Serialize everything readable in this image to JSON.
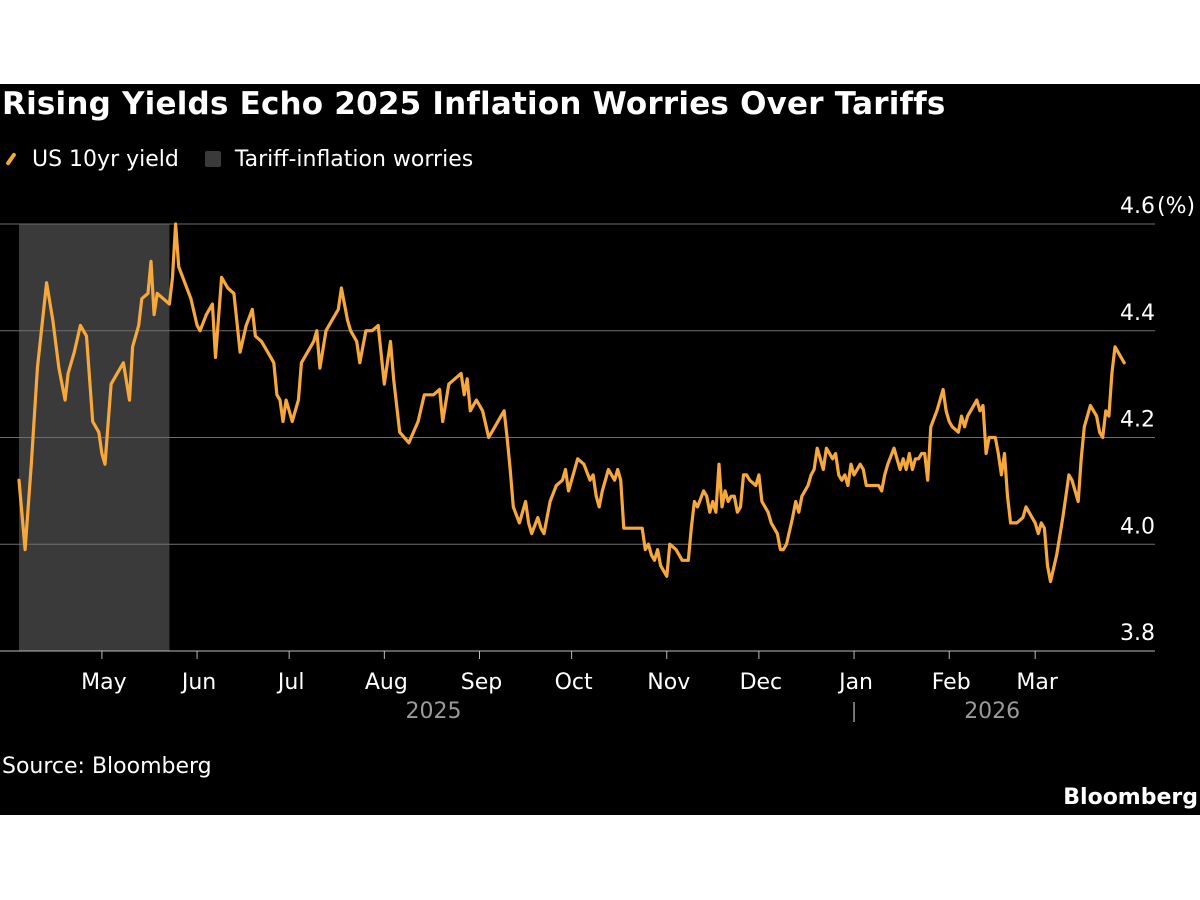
{
  "chart_data": {
    "type": "line",
    "title": "Rising Yields Echo 2025 Inflation Worries Over Tariffs",
    "source": "Source: Bloomberg",
    "brand": "Bloomberg",
    "legend": [
      {
        "label": "US 10yr yield",
        "kind": "line",
        "color": "#f7a83a"
      },
      {
        "label": "Tariff-inflation worries",
        "kind": "box",
        "color": "#3a3a3a"
      }
    ],
    "y_unit_label": "(%)",
    "ylim": [
      3.8,
      4.6
    ],
    "y_ticks": [
      3.8,
      4.0,
      4.2,
      4.4,
      4.6
    ],
    "y_tick_labels": [
      "3.8",
      "4.0",
      "4.2",
      "4.4",
      "4.6"
    ],
    "x_axis": {
      "start_day": 0,
      "end_day": 383,
      "day_zero": "2025-04-01",
      "month_ticks": [
        {
          "label": "May",
          "day": 30
        },
        {
          "label": "Jun",
          "day": 61
        },
        {
          "label": "Jul",
          "day": 91
        },
        {
          "label": "Aug",
          "day": 122
        },
        {
          "label": "Sep",
          "day": 153
        },
        {
          "label": "Oct",
          "day": 183
        },
        {
          "label": "Nov",
          "day": 214
        },
        {
          "label": "Dec",
          "day": 244
        },
        {
          "label": "Jan",
          "day": 275
        },
        {
          "label": "Feb",
          "day": 306
        },
        {
          "label": "Mar",
          "day": 334
        }
      ],
      "year_labels": [
        {
          "label": "2025",
          "day": 138
        },
        {
          "label": "2026",
          "day": 320
        }
      ],
      "year_divider_day": 275
    },
    "shaded_regions": [
      {
        "label": "Tariff-inflation worries",
        "start_day": 3,
        "end_day": 52
      }
    ],
    "series": [
      {
        "name": "US 10yr yield",
        "color": "#f7a83a",
        "points": [
          [
            3,
            4.12
          ],
          [
            5,
            3.99
          ],
          [
            7,
            4.15
          ],
          [
            9,
            4.33
          ],
          [
            12,
            4.49
          ],
          [
            14,
            4.42
          ],
          [
            16,
            4.33
          ],
          [
            18,
            4.27
          ],
          [
            19,
            4.32
          ],
          [
            21,
            4.36
          ],
          [
            23,
            4.41
          ],
          [
            25,
            4.39
          ],
          [
            27,
            4.23
          ],
          [
            29,
            4.21
          ],
          [
            30,
            4.17
          ],
          [
            31,
            4.15
          ],
          [
            33,
            4.3
          ],
          [
            35,
            4.32
          ],
          [
            37,
            4.34
          ],
          [
            39,
            4.27
          ],
          [
            40,
            4.37
          ],
          [
            42,
            4.41
          ],
          [
            43,
            4.46
          ],
          [
            45,
            4.47
          ],
          [
            46,
            4.53
          ],
          [
            47,
            4.43
          ],
          [
            48,
            4.47
          ],
          [
            50,
            4.46
          ],
          [
            52,
            4.45
          ],
          [
            53,
            4.5
          ],
          [
            54,
            4.6
          ],
          [
            55,
            4.52
          ],
          [
            57,
            4.49
          ],
          [
            59,
            4.46
          ],
          [
            61,
            4.41
          ],
          [
            62,
            4.4
          ],
          [
            64,
            4.43
          ],
          [
            66,
            4.45
          ],
          [
            67,
            4.35
          ],
          [
            69,
            4.5
          ],
          [
            71,
            4.48
          ],
          [
            73,
            4.47
          ],
          [
            75,
            4.36
          ],
          [
            77,
            4.41
          ],
          [
            79,
            4.44
          ],
          [
            80,
            4.39
          ],
          [
            82,
            4.38
          ],
          [
            84,
            4.36
          ],
          [
            86,
            4.34
          ],
          [
            87,
            4.28
          ],
          [
            88,
            4.27
          ],
          [
            89,
            4.23
          ],
          [
            90,
            4.27
          ],
          [
            91,
            4.25
          ],
          [
            92,
            4.23
          ],
          [
            94,
            4.27
          ],
          [
            95,
            4.34
          ],
          [
            97,
            4.36
          ],
          [
            99,
            4.38
          ],
          [
            100,
            4.4
          ],
          [
            101,
            4.33
          ],
          [
            103,
            4.4
          ],
          [
            105,
            4.42
          ],
          [
            107,
            4.44
          ],
          [
            108,
            4.48
          ],
          [
            110,
            4.42
          ],
          [
            111,
            4.4
          ],
          [
            113,
            4.38
          ],
          [
            114,
            4.34
          ],
          [
            116,
            4.4
          ],
          [
            118,
            4.4
          ],
          [
            120,
            4.41
          ],
          [
            122,
            4.3
          ],
          [
            124,
            4.38
          ],
          [
            125,
            4.31
          ],
          [
            127,
            4.21
          ],
          [
            130,
            4.19
          ],
          [
            133,
            4.23
          ],
          [
            135,
            4.28
          ],
          [
            138,
            4.28
          ],
          [
            140,
            4.29
          ],
          [
            141,
            4.23
          ],
          [
            143,
            4.3
          ],
          [
            145,
            4.31
          ],
          [
            147,
            4.32
          ],
          [
            148,
            4.28
          ],
          [
            149,
            4.31
          ],
          [
            150,
            4.25
          ],
          [
            152,
            4.27
          ],
          [
            154,
            4.25
          ],
          [
            156,
            4.2
          ],
          [
            158,
            4.22
          ],
          [
            160,
            4.24
          ],
          [
            161,
            4.25
          ],
          [
            162,
            4.2
          ],
          [
            163,
            4.14
          ],
          [
            164,
            4.07
          ],
          [
            166,
            4.04
          ],
          [
            168,
            4.08
          ],
          [
            169,
            4.04
          ],
          [
            170,
            4.02
          ],
          [
            172,
            4.05
          ],
          [
            173,
            4.03
          ],
          [
            174,
            4.02
          ],
          [
            176,
            4.08
          ],
          [
            178,
            4.11
          ],
          [
            180,
            4.12
          ],
          [
            181,
            4.14
          ],
          [
            182,
            4.1
          ],
          [
            183,
            4.12
          ],
          [
            185,
            4.16
          ],
          [
            187,
            4.15
          ],
          [
            189,
            4.12
          ],
          [
            190,
            4.13
          ],
          [
            191,
            4.09
          ],
          [
            192,
            4.07
          ],
          [
            193,
            4.1
          ],
          [
            195,
            4.14
          ],
          [
            197,
            4.12
          ],
          [
            198,
            4.14
          ],
          [
            199,
            4.12
          ],
          [
            200,
            4.03
          ],
          [
            202,
            4.03
          ],
          [
            204,
            4.03
          ],
          [
            206,
            4.03
          ],
          [
            207,
            3.99
          ],
          [
            208,
            4.0
          ],
          [
            209,
            3.98
          ],
          [
            210,
            3.97
          ],
          [
            211,
            3.99
          ],
          [
            212,
            3.96
          ],
          [
            214,
            3.94
          ],
          [
            215,
            4.0
          ],
          [
            217,
            3.99
          ],
          [
            218,
            3.98
          ],
          [
            219,
            3.97
          ],
          [
            221,
            3.97
          ],
          [
            222,
            4.03
          ],
          [
            223,
            4.08
          ],
          [
            224,
            4.07
          ],
          [
            226,
            4.1
          ],
          [
            227,
            4.09
          ],
          [
            228,
            4.06
          ],
          [
            229,
            4.08
          ],
          [
            230,
            4.06
          ],
          [
            231,
            4.15
          ],
          [
            232,
            4.07
          ],
          [
            233,
            4.1
          ],
          [
            234,
            4.08
          ],
          [
            235,
            4.09
          ],
          [
            236,
            4.09
          ],
          [
            237,
            4.06
          ],
          [
            238,
            4.07
          ],
          [
            239,
            4.13
          ],
          [
            240,
            4.13
          ],
          [
            241,
            4.12
          ],
          [
            243,
            4.11
          ],
          [
            244,
            4.13
          ],
          [
            245,
            4.08
          ],
          [
            247,
            4.06
          ],
          [
            248,
            4.04
          ],
          [
            250,
            4.02
          ],
          [
            251,
            3.99
          ],
          [
            252,
            3.99
          ],
          [
            253,
            4.0
          ],
          [
            255,
            4.05
          ],
          [
            256,
            4.08
          ],
          [
            257,
            4.06
          ],
          [
            258,
            4.09
          ],
          [
            260,
            4.11
          ],
          [
            261,
            4.13
          ],
          [
            262,
            4.14
          ],
          [
            263,
            4.18
          ],
          [
            264,
            4.16
          ],
          [
            265,
            4.14
          ],
          [
            266,
            4.18
          ],
          [
            268,
            4.16
          ],
          [
            269,
            4.17
          ],
          [
            270,
            4.13
          ],
          [
            271,
            4.12
          ],
          [
            272,
            4.13
          ],
          [
            273,
            4.11
          ],
          [
            274,
            4.15
          ],
          [
            275,
            4.13
          ],
          [
            277,
            4.15
          ],
          [
            278,
            4.14
          ],
          [
            279,
            4.11
          ],
          [
            281,
            4.11
          ],
          [
            283,
            4.11
          ],
          [
            284,
            4.1
          ],
          [
            285,
            4.13
          ],
          [
            286,
            4.15
          ],
          [
            288,
            4.18
          ],
          [
            289,
            4.16
          ],
          [
            290,
            4.14
          ],
          [
            291,
            4.16
          ],
          [
            292,
            4.14
          ],
          [
            293,
            4.17
          ],
          [
            294,
            4.14
          ],
          [
            295,
            4.16
          ],
          [
            296,
            4.16
          ],
          [
            297,
            4.17
          ],
          [
            298,
            4.17
          ],
          [
            299,
            4.12
          ],
          [
            300,
            4.22
          ],
          [
            302,
            4.25
          ],
          [
            304,
            4.29
          ],
          [
            305,
            4.25
          ],
          [
            306,
            4.23
          ],
          [
            307,
            4.22
          ],
          [
            309,
            4.21
          ],
          [
            310,
            4.24
          ],
          [
            311,
            4.22
          ],
          [
            312,
            4.24
          ],
          [
            313,
            4.25
          ],
          [
            315,
            4.27
          ],
          [
            316,
            4.25
          ],
          [
            317,
            4.26
          ],
          [
            318,
            4.17
          ],
          [
            319,
            4.2
          ],
          [
            320,
            4.2
          ],
          [
            321,
            4.2
          ],
          [
            322,
            4.17
          ],
          [
            323,
            4.13
          ],
          [
            324,
            4.17
          ],
          [
            325,
            4.09
          ],
          [
            326,
            4.04
          ],
          [
            328,
            4.04
          ],
          [
            330,
            4.05
          ],
          [
            331,
            4.07
          ],
          [
            332,
            4.06
          ],
          [
            333,
            4.05
          ],
          [
            334,
            4.04
          ],
          [
            335,
            4.02
          ],
          [
            336,
            4.04
          ],
          [
            337,
            4.03
          ],
          [
            338,
            3.96
          ],
          [
            339,
            3.93
          ],
          [
            341,
            3.98
          ],
          [
            343,
            4.05
          ],
          [
            344,
            4.09
          ],
          [
            345,
            4.13
          ],
          [
            346,
            4.12
          ],
          [
            347,
            4.1
          ],
          [
            348,
            4.08
          ],
          [
            349,
            4.16
          ],
          [
            350,
            4.22
          ],
          [
            352,
            4.26
          ],
          [
            354,
            4.24
          ],
          [
            355,
            4.21
          ],
          [
            356,
            4.2
          ],
          [
            357,
            4.25
          ],
          [
            358,
            4.24
          ],
          [
            359,
            4.32
          ],
          [
            360,
            4.37
          ],
          [
            362,
            4.35
          ],
          [
            363,
            4.34
          ]
        ]
      }
    ]
  }
}
